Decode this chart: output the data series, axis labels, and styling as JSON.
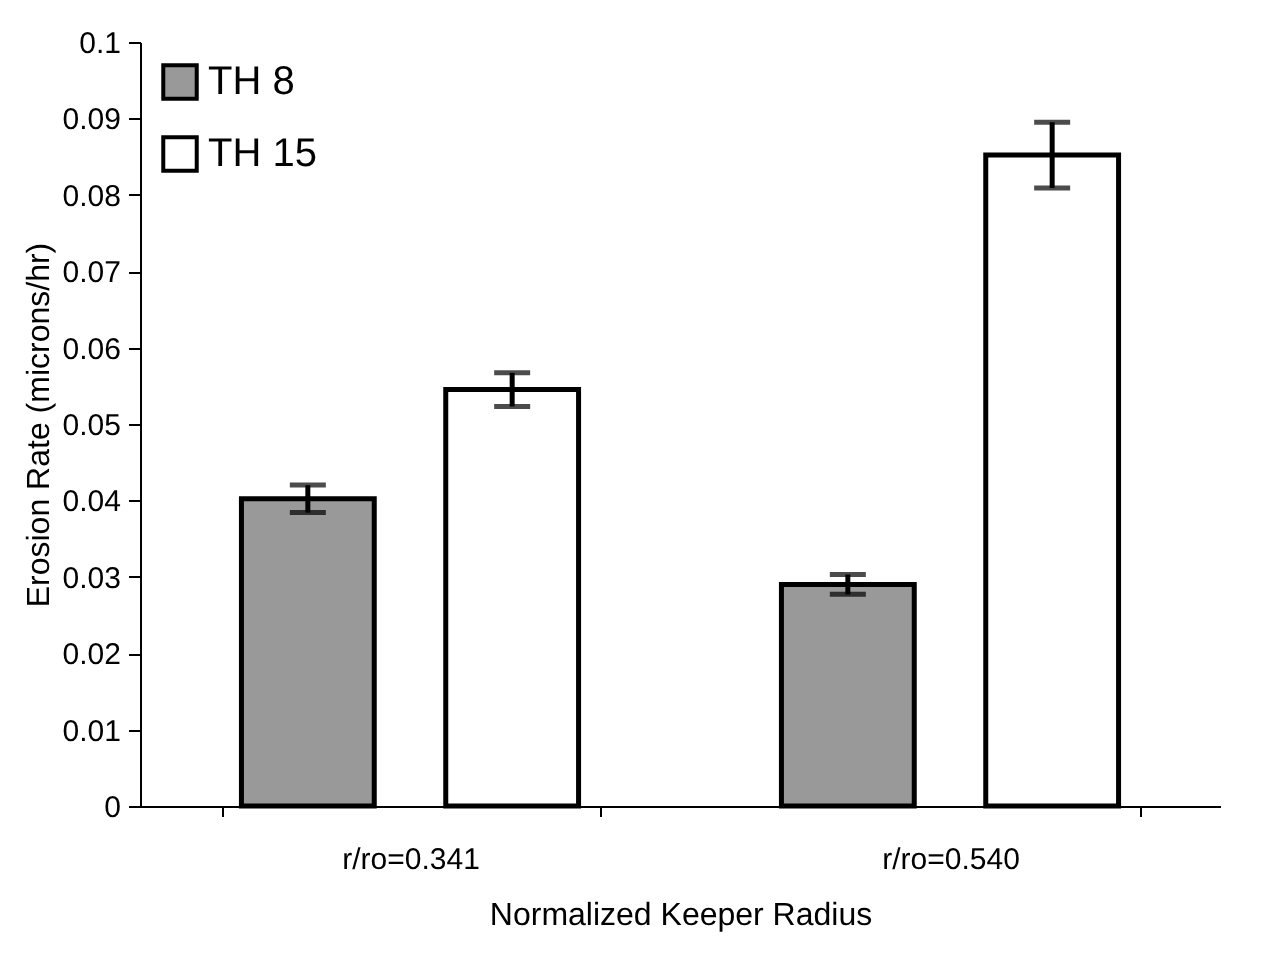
{
  "chart_data": {
    "type": "bar",
    "xlabel": "Normalized Keeper Radius",
    "ylabel": "Erosion Rate (microns/hr)",
    "categories": [
      "r/ro=0.341",
      "r/ro=0.540"
    ],
    "series": [
      {
        "name": "TH 8",
        "color": "#999999",
        "values": [
          0.0402,
          0.029
        ],
        "errors": [
          0.0018,
          0.0013
        ]
      },
      {
        "name": "TH 15",
        "color": "#ffffff",
        "values": [
          0.0545,
          0.0852
        ],
        "errors": [
          0.0022,
          0.0043
        ]
      }
    ],
    "ylim": [
      0,
      0.1
    ],
    "yticks": [
      0,
      0.01,
      0.02,
      0.03,
      0.04,
      0.05,
      0.06,
      0.07,
      0.08,
      0.09,
      {
        "value": 0.1,
        "label": "0.1"
      }
    ],
    "grid": false,
    "legend": "top left"
  }
}
